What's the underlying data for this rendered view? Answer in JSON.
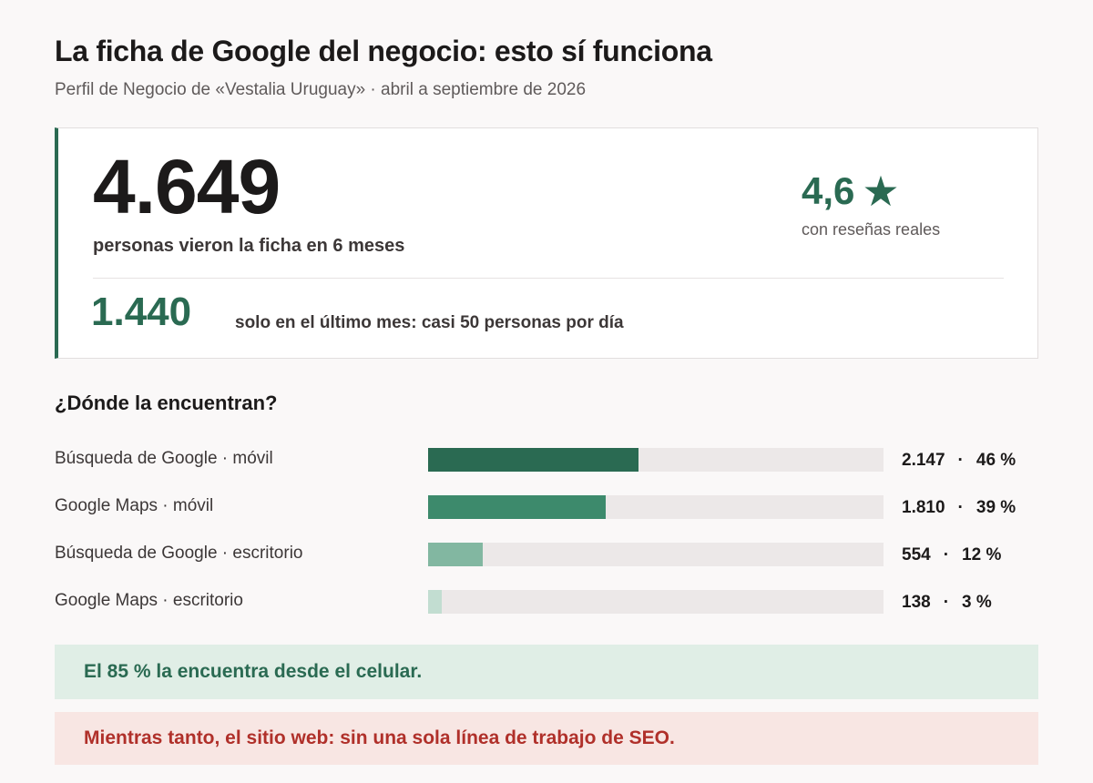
{
  "header": {
    "title": "La ficha de Google del negocio: esto sí funciona",
    "subtitle": "Perfil de Negocio de «Vestalia Uruguay» · abril a septiembre de 2026"
  },
  "summary": {
    "total_views": "4.649",
    "total_caption": "personas vieron la ficha en 6 meses",
    "rating": "4,6",
    "rating_icon": "star-icon",
    "rating_caption": "con reseñas reales",
    "last_month_views": "1.440",
    "last_month_caption": "solo en el último mes: casi 50 personas por día"
  },
  "chart_data": {
    "type": "bar",
    "title": "¿Dónde la encuentran?",
    "categories": [
      "Búsqueda de Google · móvil",
      "Google Maps · móvil",
      "Búsqueda de Google · escritorio",
      "Google Maps · escritorio"
    ],
    "values": [
      2147,
      1810,
      554,
      138
    ],
    "value_labels": [
      "2.147",
      "1.810",
      "554",
      "138"
    ],
    "percent_labels": [
      "46 %",
      "39 %",
      "12 %",
      "3 %"
    ],
    "colors": [
      "#2a6a52",
      "#3d8a6c",
      "#82b7a1",
      "#c2ddd1"
    ],
    "track_color": "#ece8e8",
    "max": 4649,
    "orientation": "horizontal"
  },
  "callouts": {
    "mobile": "El 85 % la encuentra desde el celular.",
    "seo": "Mientras tanto, el sitio web: sin una sola línea de trabajo de SEO."
  },
  "colors": {
    "accent_green": "#2a6a52",
    "warning_red": "#b0302a",
    "background": "#faf8f8"
  }
}
